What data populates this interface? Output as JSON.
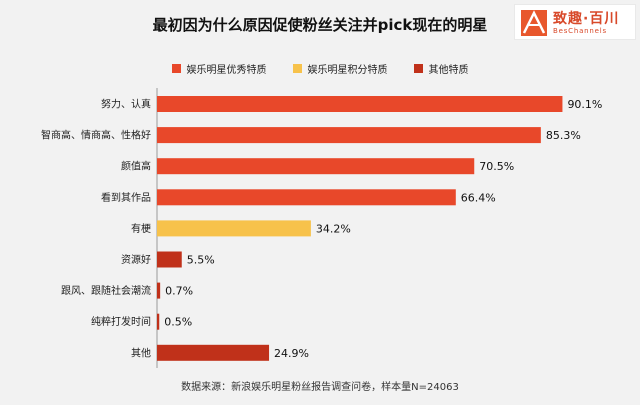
{
  "chart_data": {
    "type": "bar",
    "orientation": "horizontal",
    "title": "最初因为什么原因促使粉丝关注并pick现在的明星",
    "categories": [
      "努力、认真",
      "智商高、情商高、性格好",
      "颜值高",
      "看到其作品",
      "有梗",
      "资源好",
      "跟风、跟随社会潮流",
      "纯粹打发时间",
      "其他"
    ],
    "values": [
      90.1,
      85.3,
      70.5,
      66.4,
      34.2,
      5.5,
      0.7,
      0.5,
      24.9
    ],
    "value_labels": [
      "90.1%",
      "85.3%",
      "70.5%",
      "66.4%",
      "34.2%",
      "5.5%",
      "0.7%",
      "0.5%",
      "24.9%"
    ],
    "bar_groups": [
      0,
      0,
      0,
      0,
      1,
      2,
      2,
      2,
      2
    ],
    "legend": [
      {
        "name": "娱乐明星优秀特质",
        "color": "#e8482a"
      },
      {
        "name": "娱乐明星积分特质",
        "color": "#f7c24b"
      },
      {
        "name": "其他特质",
        "color": "#c0311a"
      }
    ],
    "legend_placement": "top",
    "xlim": [
      0,
      100
    ],
    "grid": false
  },
  "source": "数据来源：新浪娱乐明星粉丝报告调查问卷，样本量N=24063",
  "logo": {
    "cn": "致趣·百川",
    "en": "BesChannels"
  }
}
